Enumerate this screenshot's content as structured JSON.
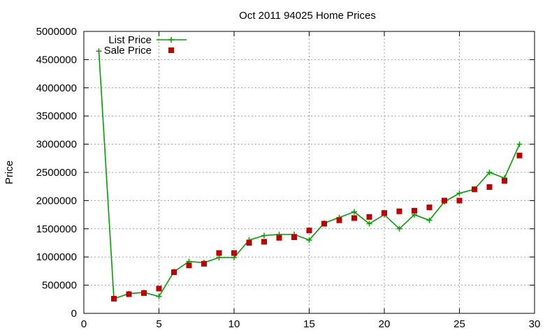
{
  "chart_data": {
    "type": "line",
    "title": "Oct 2011 94025 Home Prices",
    "xlabel": "",
    "ylabel": "Price",
    "xlim": [
      0,
      30
    ],
    "ylim": [
      0,
      5000000
    ],
    "xticks": [
      0,
      5,
      10,
      15,
      20,
      25,
      30
    ],
    "yticks": [
      0,
      500000,
      1000000,
      1500000,
      2000000,
      2500000,
      3000000,
      3500000,
      4000000,
      4500000,
      5000000
    ],
    "grid": true,
    "legend_position": "top-left",
    "series": [
      {
        "name": "List Price",
        "style": "linespoints",
        "color": "#00a000",
        "marker": "plus",
        "x": [
          1,
          2,
          3,
          4,
          5,
          6,
          7,
          8,
          9,
          10,
          11,
          12,
          13,
          14,
          15,
          16,
          17,
          18,
          19,
          20,
          21,
          22,
          23,
          24,
          25,
          26,
          27,
          28,
          29
        ],
        "y": [
          4650000,
          260000,
          350000,
          370000,
          300000,
          740000,
          920000,
          900000,
          990000,
          990000,
          1300000,
          1380000,
          1400000,
          1400000,
          1300000,
          1600000,
          1700000,
          1800000,
          1590000,
          1750000,
          1500000,
          1750000,
          1650000,
          1980000,
          2130000,
          2200000,
          2500000,
          2400000,
          3000000
        ]
      },
      {
        "name": "Sale Price",
        "style": "points",
        "color": "#c00000",
        "marker": "square",
        "x": [
          2,
          3,
          4,
          5,
          6,
          7,
          8,
          9,
          10,
          11,
          12,
          13,
          14,
          15,
          16,
          17,
          18,
          19,
          20,
          21,
          22,
          23,
          24,
          25,
          26,
          27,
          28,
          29
        ],
        "y": [
          260000,
          340000,
          360000,
          440000,
          730000,
          850000,
          880000,
          1070000,
          1070000,
          1250000,
          1270000,
          1340000,
          1350000,
          1470000,
          1590000,
          1650000,
          1690000,
          1710000,
          1780000,
          1810000,
          1820000,
          1880000,
          2000000,
          2000000,
          2200000,
          2240000,
          2350000,
          2800000
        ]
      }
    ]
  }
}
